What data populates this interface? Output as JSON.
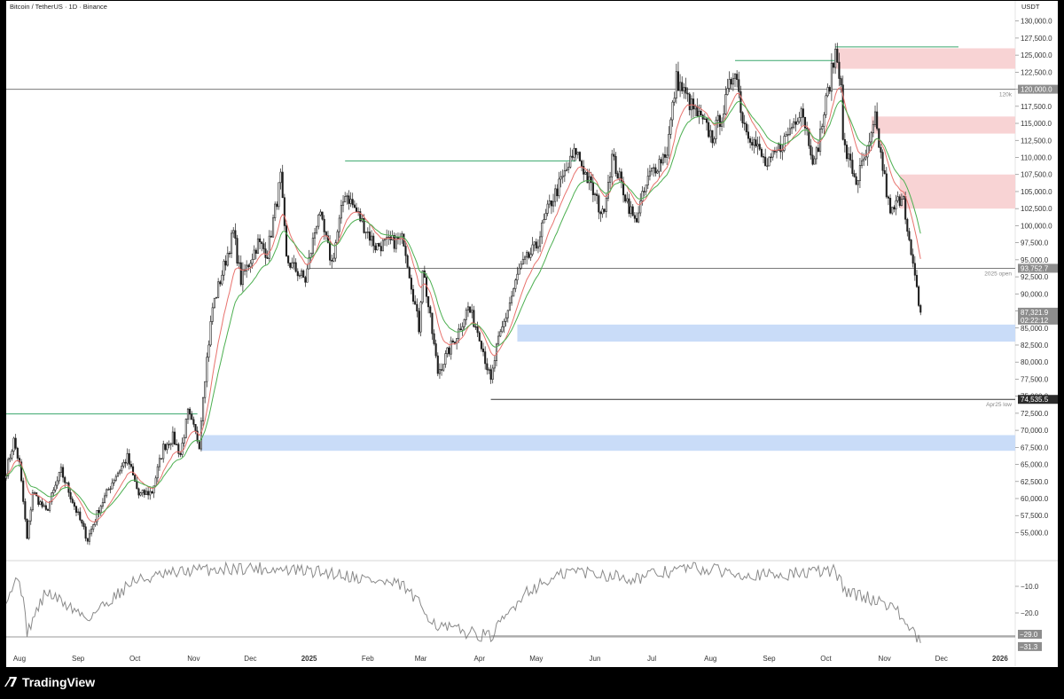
{
  "header": {
    "symbol_line": "Bitcoin / TetherUS · 1D · Binance",
    "currency": "USDT"
  },
  "footer": {
    "logo_mark": "⁄7",
    "brand": "TradingView"
  },
  "colors": {
    "background": "#ffffff",
    "frame": "#000000",
    "candle": "#1f1f1f",
    "ema_fast": "#e8736e",
    "ema_slow": "#4caf50",
    "supply_zone": "#f8d3d4",
    "demand_zone": "#c9dcf8",
    "tag_dark": "#2b2b2b",
    "tag_gray": "#8d8d8d",
    "rsi_line": "#8a8a8a"
  },
  "chart_data": [
    {
      "type": "candlestick",
      "title": "Bitcoin / TetherUS · 1D · Binance",
      "ylabel": "USDT",
      "ylim": [
        53500,
        131000
      ],
      "x_ticks": [
        "Aug",
        "Sep",
        "Oct",
        "Nov",
        "Dec",
        "2025",
        "Feb",
        "Mar",
        "Apr",
        "May",
        "Jun",
        "Jul",
        "Aug",
        "Sep",
        "Oct",
        "Nov",
        "Dec",
        "2026"
      ],
      "y_ticks": [
        55000,
        57500,
        60000,
        62500,
        65000,
        67500,
        70000,
        72500,
        75000,
        77500,
        80000,
        82500,
        85000,
        87500,
        90000,
        92500,
        95000,
        97500,
        100000,
        102500,
        105000,
        107500,
        110000,
        112500,
        115000,
        117500,
        120000,
        122500,
        125000,
        127500,
        130000
      ],
      "y_tick_labels": [
        "55,000.0",
        "57,500.0",
        "60,000.0",
        "62,500.0",
        "65,000.0",
        "67,500.0",
        "70,000.0",
        "72,500.0",
        "75,000.0",
        "77,500.0",
        "80,000.0",
        "82,500.0",
        "85,000.0",
        "87,500.0",
        "90,000.0",
        "92,500.0",
        "95,000.0",
        "97,500.0",
        "100,000.0",
        "102,500.0",
        "105,000.0",
        "107,500.0",
        "110,000.0",
        "112,500.0",
        "115,000.0",
        "117,500.0",
        "120,000.0",
        "122,500.0",
        "125,000.0",
        "127,500.0",
        "130,000.0"
      ],
      "price_keypoints": [
        [
          "2024-07-25",
          64000
        ],
        [
          "2024-07-29",
          68500
        ],
        [
          "2024-08-01",
          65000
        ],
        [
          "2024-08-05",
          54000
        ],
        [
          "2024-08-08",
          61000
        ],
        [
          "2024-08-15",
          58000
        ],
        [
          "2024-08-23",
          64000
        ],
        [
          "2024-09-01",
          57500
        ],
        [
          "2024-09-06",
          54000
        ],
        [
          "2024-09-12",
          58500
        ],
        [
          "2024-09-20",
          63000
        ],
        [
          "2024-09-27",
          66000
        ],
        [
          "2024-10-03",
          60500
        ],
        [
          "2024-10-10",
          61000
        ],
        [
          "2024-10-16",
          67500
        ],
        [
          "2024-10-21",
          69000
        ],
        [
          "2024-10-25",
          66500
        ],
        [
          "2024-10-29",
          72500
        ],
        [
          "2024-11-04",
          68000
        ],
        [
          "2024-11-06",
          75500
        ],
        [
          "2024-11-11",
          88000
        ],
        [
          "2024-11-13",
          90000
        ],
        [
          "2024-11-22",
          99000
        ],
        [
          "2024-11-26",
          92000
        ],
        [
          "2024-12-05",
          97500
        ],
        [
          "2024-12-10",
          96000
        ],
        [
          "2024-12-17",
          107000
        ],
        [
          "2024-12-20",
          95000
        ],
        [
          "2024-12-30",
          92000
        ],
        [
          "2025-01-06",
          102000
        ],
        [
          "2025-01-13",
          94500
        ],
        [
          "2025-01-20",
          105000
        ],
        [
          "2025-01-27",
          101500
        ],
        [
          "2025-02-05",
          97000
        ],
        [
          "2025-02-20",
          98000
        ],
        [
          "2025-02-28",
          85000
        ],
        [
          "2025-03-02",
          94000
        ],
        [
          "2025-03-10",
          78500
        ],
        [
          "2025-03-20",
          84000
        ],
        [
          "2025-03-26",
          88000
        ],
        [
          "2025-04-01",
          84000
        ],
        [
          "2025-04-07",
          77000
        ],
        [
          "2025-04-10",
          82000
        ],
        [
          "2025-04-22",
          93500
        ],
        [
          "2025-05-01",
          97000
        ],
        [
          "2025-05-08",
          103000
        ],
        [
          "2025-05-22",
          111000
        ],
        [
          "2025-06-05",
          101500
        ],
        [
          "2025-06-10",
          110000
        ],
        [
          "2025-06-22",
          100500
        ],
        [
          "2025-06-30",
          107500
        ],
        [
          "2025-07-09",
          111000
        ],
        [
          "2025-07-14",
          121500
        ],
        [
          "2025-07-22",
          117500
        ],
        [
          "2025-08-02",
          113000
        ],
        [
          "2025-08-08",
          117000
        ],
        [
          "2025-08-14",
          123500
        ],
        [
          "2025-08-18",
          115500
        ],
        [
          "2025-08-31",
          108500
        ],
        [
          "2025-09-10",
          113000
        ],
        [
          "2025-09-18",
          117500
        ],
        [
          "2025-09-25",
          109000
        ],
        [
          "2025-10-01",
          118000
        ],
        [
          "2025-10-06",
          125500
        ],
        [
          "2025-10-09",
          121500
        ],
        [
          "2025-10-10",
          112000
        ],
        [
          "2025-10-17",
          106500
        ],
        [
          "2025-10-24",
          111500
        ],
        [
          "2025-10-27",
          115500
        ],
        [
          "2025-11-04",
          101500
        ],
        [
          "2025-11-11",
          105000
        ],
        [
          "2025-11-13",
          99000
        ],
        [
          "2025-11-17",
          92000
        ],
        [
          "2025-11-20",
          87300
        ]
      ],
      "last_candle_date": "2025-11-20",
      "supply_zones": [
        {
          "from": "2025-10-06",
          "to": "2026-01-09",
          "low": 123000,
          "high": 126000
        },
        {
          "from": "2025-10-25",
          "to": "2026-01-09",
          "low": 113500,
          "high": 116000
        },
        {
          "from": "2025-11-09",
          "to": "2026-01-09",
          "low": 102500,
          "high": 107500
        }
      ],
      "demand_zones": [
        {
          "from": "2025-04-21",
          "to": "2026-01-09",
          "low": 83000,
          "high": 85500
        },
        {
          "from": "2024-11-05",
          "to": "2026-01-09",
          "low": 67000,
          "high": 69300
        }
      ],
      "levels": [
        {
          "price": 120000,
          "from": "2024-07-25",
          "to": "2026-01-09",
          "label": "120k",
          "color": "#7a7a7a"
        },
        {
          "price": 93752.7,
          "from": "2025-01-01",
          "to": "2026-01-09",
          "label": "2025 open",
          "color": "#7a7a7a"
        },
        {
          "price": 74535.5,
          "from": "2025-04-07",
          "to": "2026-01-09",
          "label": "Apr25 low",
          "color": "#333333"
        }
      ],
      "swing_lines": [
        {
          "price": 72400,
          "from": "2024-07-25",
          "to": "2024-11-03"
        },
        {
          "price": 109500,
          "from": "2025-01-20",
          "to": "2025-05-22"
        },
        {
          "price": 124200,
          "from": "2025-08-14",
          "to": "2025-10-06"
        },
        {
          "price": 126200,
          "from": "2025-10-06",
          "to": "2025-12-10"
        }
      ],
      "price_tags": [
        {
          "price": 120000,
          "text": "120,000.0",
          "style": "gray"
        },
        {
          "price": 93752.7,
          "text": "93,752.7",
          "style": "gray"
        },
        {
          "price": 87321.9,
          "text": "87,321.9",
          "sub": "02:22:12",
          "style": "gray"
        },
        {
          "price": 74535.5,
          "text": "74,535.5",
          "style": "dark"
        }
      ]
    },
    {
      "type": "line",
      "title": "",
      "ylabel": "",
      "ylim": [
        -34,
        -3
      ],
      "y_ticks": [
        -10,
        -20
      ],
      "y_tick_labels": [
        "−10.0",
        "−20.0"
      ],
      "floor_level": -29.0,
      "floor_from": "2024-07-25",
      "second_level": -31.3,
      "second_from": "2025-04-07",
      "value_keypoints": [
        [
          "2024-07-25",
          -14
        ],
        [
          "2024-08-01",
          -6
        ],
        [
          "2024-08-05",
          -27
        ],
        [
          "2024-08-15",
          -12
        ],
        [
          "2024-09-06",
          -22
        ],
        [
          "2024-09-30",
          -8
        ],
        [
          "2024-10-31",
          -4
        ],
        [
          "2024-11-30",
          -3
        ],
        [
          "2025-01-15",
          -5
        ],
        [
          "2025-02-20",
          -10
        ],
        [
          "2025-03-10",
          -25
        ],
        [
          "2025-04-07",
          -29
        ],
        [
          "2025-04-25",
          -12
        ],
        [
          "2025-05-20",
          -4
        ],
        [
          "2025-06-22",
          -7
        ],
        [
          "2025-07-20",
          -3
        ],
        [
          "2025-09-01",
          -6
        ],
        [
          "2025-10-05",
          -4
        ],
        [
          "2025-10-12",
          -12
        ],
        [
          "2025-11-05",
          -17
        ],
        [
          "2025-11-20",
          -31.3
        ]
      ],
      "tags": [
        {
          "value": -29.0,
          "text": "−29.0"
        },
        {
          "value": -31.3,
          "text": "−31.3"
        }
      ]
    }
  ]
}
